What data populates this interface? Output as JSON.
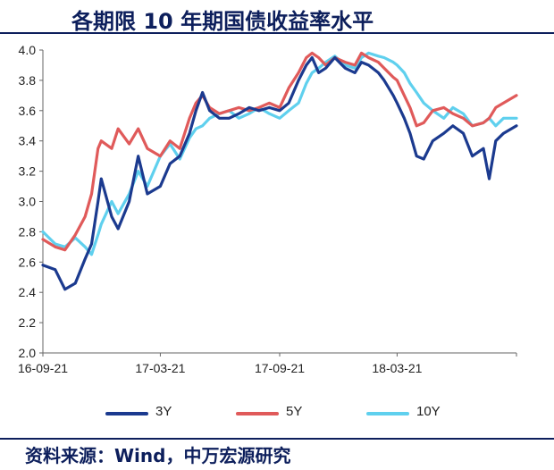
{
  "title": "各期限 10 年期国债收益率水平",
  "source": "资料来源：Wind，中万宏源研究",
  "colors": {
    "3Y": "#1b3a8f",
    "5Y": "#e05a5a",
    "10Y": "#5fd0ee",
    "axis": "#666666",
    "title": "#0d1f5c"
  },
  "chart_data": {
    "type": "line",
    "title": "各期限 10 年期国债收益率水平",
    "xlabel": "",
    "ylabel": "",
    "ylim": [
      2.0,
      4.0
    ],
    "yticks": [
      "2.0",
      "2.2",
      "2.4",
      "2.6",
      "2.8",
      "3.0",
      "3.2",
      "3.4",
      "3.6",
      "3.8",
      "4.0"
    ],
    "xlim": [
      "2016-09-21",
      "2018-09-21"
    ],
    "xtick_labels": [
      "16-09-21",
      "17-03-21",
      "17-09-21",
      "18-03-21"
    ],
    "xtick_dates": [
      "2016-09-21",
      "2017-03-21",
      "2017-09-21",
      "2018-03-21"
    ],
    "grid": false,
    "legend_position": "bottom",
    "series": [
      {
        "name": "3Y",
        "x": [
          "2016-09-21",
          "2016-10-10",
          "2016-10-25",
          "2016-11-10",
          "2016-11-25",
          "2016-12-05",
          "2016-12-15",
          "2016-12-20",
          "2017-01-05",
          "2017-01-15",
          "2017-02-01",
          "2017-02-15",
          "2017-03-01",
          "2017-03-21",
          "2017-04-05",
          "2017-04-20",
          "2017-05-05",
          "2017-05-15",
          "2017-05-25",
          "2017-06-05",
          "2017-06-20",
          "2017-07-05",
          "2017-07-20",
          "2017-08-05",
          "2017-08-20",
          "2017-09-05",
          "2017-09-21",
          "2017-10-05",
          "2017-10-20",
          "2017-11-01",
          "2017-11-10",
          "2017-11-20",
          "2017-12-01",
          "2017-12-15",
          "2017-12-31",
          "2018-01-15",
          "2018-01-25",
          "2018-02-05",
          "2018-02-20",
          "2018-03-01",
          "2018-03-15",
          "2018-03-21",
          "2018-04-01",
          "2018-04-10",
          "2018-04-20",
          "2018-05-01",
          "2018-05-15",
          "2018-06-01",
          "2018-06-15",
          "2018-07-01",
          "2018-07-15",
          "2018-08-01",
          "2018-08-10",
          "2018-08-20",
          "2018-09-01",
          "2018-09-21"
        ],
        "values": [
          2.58,
          2.55,
          2.42,
          2.46,
          2.62,
          2.72,
          3.0,
          3.15,
          2.9,
          2.82,
          3.0,
          3.3,
          3.05,
          3.1,
          3.25,
          3.3,
          3.45,
          3.6,
          3.72,
          3.6,
          3.55,
          3.55,
          3.58,
          3.62,
          3.6,
          3.62,
          3.6,
          3.65,
          3.8,
          3.9,
          3.95,
          3.85,
          3.88,
          3.95,
          3.88,
          3.85,
          3.92,
          3.9,
          3.85,
          3.8,
          3.7,
          3.65,
          3.55,
          3.45,
          3.3,
          3.28,
          3.4,
          3.45,
          3.5,
          3.45,
          3.3,
          3.35,
          3.15,
          3.4,
          3.45,
          3.5
        ]
      },
      {
        "name": "5Y",
        "x": [
          "2016-09-21",
          "2016-10-10",
          "2016-10-25",
          "2016-11-10",
          "2016-11-25",
          "2016-12-05",
          "2016-12-15",
          "2016-12-20",
          "2017-01-05",
          "2017-01-15",
          "2017-02-01",
          "2017-02-15",
          "2017-03-01",
          "2017-03-21",
          "2017-04-05",
          "2017-04-20",
          "2017-05-05",
          "2017-05-15",
          "2017-05-25",
          "2017-06-05",
          "2017-06-20",
          "2017-07-05",
          "2017-07-20",
          "2017-08-05",
          "2017-08-20",
          "2017-09-05",
          "2017-09-21",
          "2017-10-05",
          "2017-10-20",
          "2017-11-01",
          "2017-11-10",
          "2017-11-20",
          "2017-12-01",
          "2017-12-15",
          "2017-12-31",
          "2018-01-15",
          "2018-01-25",
          "2018-02-05",
          "2018-02-20",
          "2018-03-01",
          "2018-03-15",
          "2018-03-21",
          "2018-04-01",
          "2018-04-10",
          "2018-04-20",
          "2018-05-01",
          "2018-05-15",
          "2018-06-01",
          "2018-06-15",
          "2018-07-01",
          "2018-07-15",
          "2018-08-01",
          "2018-08-10",
          "2018-08-20",
          "2018-09-01",
          "2018-09-21"
        ],
        "values": [
          2.75,
          2.7,
          2.68,
          2.78,
          2.9,
          3.05,
          3.35,
          3.4,
          3.35,
          3.48,
          3.38,
          3.48,
          3.35,
          3.3,
          3.4,
          3.35,
          3.55,
          3.65,
          3.7,
          3.62,
          3.58,
          3.6,
          3.62,
          3.6,
          3.62,
          3.65,
          3.62,
          3.75,
          3.85,
          3.95,
          3.98,
          3.95,
          3.9,
          3.95,
          3.92,
          3.9,
          3.98,
          3.95,
          3.92,
          3.88,
          3.82,
          3.8,
          3.7,
          3.62,
          3.5,
          3.52,
          3.6,
          3.62,
          3.58,
          3.55,
          3.5,
          3.52,
          3.55,
          3.62,
          3.65,
          3.7
        ]
      },
      {
        "name": "10Y",
        "x": [
          "2016-09-21",
          "2016-10-10",
          "2016-10-25",
          "2016-11-10",
          "2016-11-25",
          "2016-12-05",
          "2016-12-15",
          "2016-12-20",
          "2017-01-05",
          "2017-01-15",
          "2017-02-01",
          "2017-02-15",
          "2017-03-01",
          "2017-03-21",
          "2017-04-05",
          "2017-04-20",
          "2017-05-05",
          "2017-05-15",
          "2017-05-25",
          "2017-06-05",
          "2017-06-20",
          "2017-07-05",
          "2017-07-20",
          "2017-08-05",
          "2017-08-20",
          "2017-09-05",
          "2017-09-21",
          "2017-10-05",
          "2017-10-20",
          "2017-11-01",
          "2017-11-10",
          "2017-11-20",
          "2017-12-01",
          "2017-12-15",
          "2017-12-31",
          "2018-01-15",
          "2018-01-25",
          "2018-02-05",
          "2018-02-20",
          "2018-03-01",
          "2018-03-15",
          "2018-03-21",
          "2018-04-01",
          "2018-04-10",
          "2018-04-20",
          "2018-05-01",
          "2018-05-15",
          "2018-06-01",
          "2018-06-15",
          "2018-07-01",
          "2018-07-15",
          "2018-08-01",
          "2018-08-10",
          "2018-08-20",
          "2018-09-01",
          "2018-09-21"
        ],
        "values": [
          2.8,
          2.72,
          2.7,
          2.76,
          2.7,
          2.65,
          2.78,
          2.85,
          3.0,
          2.92,
          3.05,
          3.2,
          3.1,
          3.3,
          3.38,
          3.28,
          3.42,
          3.48,
          3.5,
          3.55,
          3.58,
          3.6,
          3.55,
          3.58,
          3.62,
          3.58,
          3.55,
          3.6,
          3.65,
          3.78,
          3.85,
          3.88,
          3.92,
          3.96,
          3.9,
          3.88,
          3.95,
          3.98,
          3.96,
          3.95,
          3.92,
          3.9,
          3.85,
          3.78,
          3.72,
          3.65,
          3.6,
          3.55,
          3.62,
          3.58,
          3.5,
          3.52,
          3.55,
          3.5,
          3.55,
          3.55
        ]
      }
    ]
  }
}
